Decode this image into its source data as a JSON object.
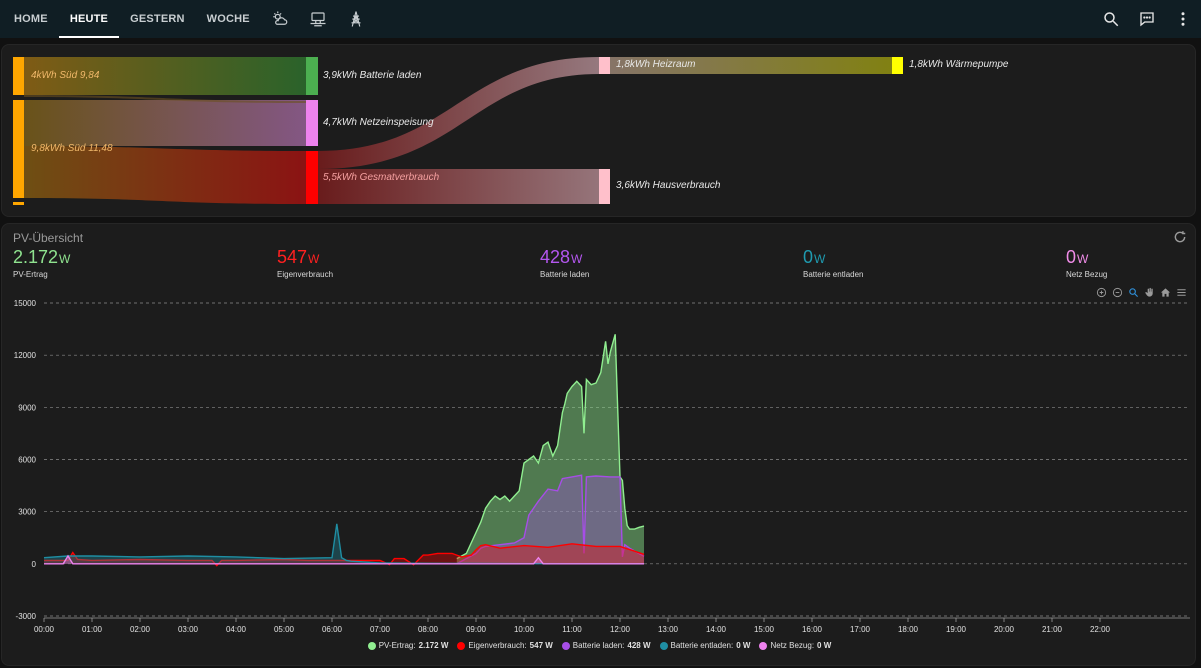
{
  "nav": {
    "tabs": [
      {
        "label": "HOME",
        "active": false
      },
      {
        "label": "HEUTE",
        "active": true
      },
      {
        "label": "GESTERN",
        "active": false
      },
      {
        "label": "WOCHE",
        "active": false
      }
    ],
    "icon_tabs": [
      "weather-sun-cloud-icon",
      "server-icon",
      "transmission-tower-icon"
    ],
    "actions": [
      "search-icon",
      "chat-icon",
      "more-vertical-icon"
    ]
  },
  "sankey": {
    "sources": [
      {
        "label": "4kWh Süd 9,84",
        "color": "#ffa600"
      },
      {
        "label": "9,8kWh Süd 11,48",
        "color": "#ffa600"
      }
    ],
    "mid": [
      {
        "label": "3,9kWh Batterie laden",
        "color": "#4caf50"
      },
      {
        "label": "4,7kWh Netzeinspeisung",
        "color": "#ee82ee"
      },
      {
        "label": "5,5kWh Gesmatverbrauch",
        "color": "#ff0000"
      }
    ],
    "third": [
      {
        "label": "1,8kWh Heizraum",
        "color": "#ffc0cb"
      },
      {
        "label": "3,6kWh Hausverbrauch",
        "color": "#ffc0cb"
      }
    ],
    "fourth": [
      {
        "label": "1,8kWh Wärmepumpe",
        "color": "#ffff00"
      }
    ]
  },
  "overview": {
    "title": "PV-Übersicht",
    "kpis": [
      {
        "value": "2.172",
        "unit": "W",
        "label": "PV-Ertrag",
        "color": "#8fe38f"
      },
      {
        "value": "547",
        "unit": "W",
        "label": "Eigenverbrauch",
        "color": "#ff2020"
      },
      {
        "value": "428",
        "unit": "W",
        "label": "Batterie laden",
        "color": "#b457f0"
      },
      {
        "value": "0",
        "unit": "W",
        "label": "Batterie entladen",
        "color": "#1f9bb0"
      },
      {
        "value": "0",
        "unit": "W",
        "label": "Netz Bezug",
        "color": "#f08ce8"
      }
    ],
    "toolbar": [
      "zoom-in-icon",
      "zoom-out-icon",
      "magnifier-icon",
      "pan-hand-icon",
      "home-icon",
      "menu-icon"
    ],
    "legend": [
      {
        "name": "PV-Ertrag:",
        "value": "2.172 W",
        "color": "#90ee90"
      },
      {
        "name": "Eigenverbrauch:",
        "value": "547 W",
        "color": "#ff0000"
      },
      {
        "name": "Batterie laden:",
        "value": "428 W",
        "color": "#a64ee6"
      },
      {
        "name": "Batterie entladen:",
        "value": "0 W",
        "color": "#1f8ea3"
      },
      {
        "name": "Netz Bezug:",
        "value": "0 W",
        "color": "#ee82ee"
      }
    ]
  },
  "chart_data": {
    "type": "area",
    "y_ticks": [
      "15000",
      "12000",
      "9000",
      "6000",
      "3000",
      "0",
      "-3000"
    ],
    "ylim": [
      -3000,
      15000
    ],
    "x_ticks": [
      "00:00",
      "01:00",
      "02:00",
      "03:00",
      "04:00",
      "05:00",
      "06:00",
      "07:00",
      "08:00",
      "09:00",
      "10:00",
      "11:00",
      "12:00",
      "13:00",
      "14:00",
      "15:00",
      "16:00",
      "17:00",
      "18:00",
      "19:00",
      "20:00",
      "21:00",
      "22:00"
    ],
    "xlim": [
      0,
      23.5
    ],
    "grid": true,
    "legend_position": "bottom",
    "series": [
      {
        "color": "#90ee90",
        "x": [
          8.6,
          8.8,
          9.0,
          9.1,
          9.2,
          9.3,
          9.4,
          9.5,
          9.6,
          9.7,
          9.8,
          9.9,
          10.0,
          10.1,
          10.2,
          10.3,
          10.4,
          10.5,
          10.6,
          10.7,
          10.8,
          10.85,
          10.9,
          11.0,
          11.1,
          11.2,
          11.25,
          11.3,
          11.4,
          11.5,
          11.6,
          11.7,
          11.75,
          11.8,
          11.9,
          12.0,
          12.05,
          12.1,
          12.15,
          12.2,
          12.3,
          12.4,
          12.5
        ],
        "y": [
          300,
          600,
          1800,
          2400,
          3200,
          3600,
          3900,
          3700,
          3900,
          3600,
          3900,
          4200,
          5800,
          6000,
          6200,
          5800,
          6800,
          7000,
          6200,
          6800,
          8700,
          9200,
          9800,
          10200,
          10500,
          10200,
          7500,
          10600,
          10300,
          10400,
          11000,
          12800,
          11500,
          12200,
          13200,
          5000,
          4800,
          3200,
          2200,
          2000,
          2000,
          2100,
          2172
        ]
      },
      {
        "color": "#ff0000",
        "x": [
          0.0,
          0.5,
          0.6,
          0.7,
          1.0,
          2.0,
          3.0,
          3.5,
          3.6,
          3.7,
          4.0,
          5.0,
          5.5,
          6.0,
          6.5,
          7.0,
          7.2,
          7.3,
          7.5,
          7.7,
          7.9,
          8.0,
          8.2,
          8.5,
          8.7,
          8.9,
          9.0,
          9.1,
          9.2,
          9.5,
          10.0,
          10.5,
          11.0,
          11.5,
          12.0,
          12.5
        ],
        "y": [
          200,
          200,
          650,
          250,
          200,
          250,
          200,
          200,
          -100,
          200,
          200,
          250,
          200,
          200,
          200,
          200,
          -50,
          300,
          300,
          -50,
          500,
          500,
          600,
          600,
          400,
          500,
          800,
          1050,
          1100,
          900,
          1050,
          950,
          1150,
          1000,
          1000,
          547
        ]
      },
      {
        "color": "#a64ee6",
        "x": [
          8.6,
          9.0,
          9.1,
          9.2,
          9.5,
          9.8,
          10.0,
          10.1,
          10.3,
          10.5,
          10.7,
          10.8,
          11.0,
          11.2,
          11.25,
          11.3,
          11.5,
          11.8,
          12.0,
          12.05,
          12.1,
          12.2,
          12.5
        ],
        "y": [
          0,
          600,
          900,
          1000,
          1100,
          1200,
          1500,
          2800,
          3600,
          4300,
          4200,
          4900,
          5000,
          5100,
          600,
          5000,
          5050,
          5000,
          5000,
          400,
          1100,
          900,
          428
        ]
      },
      {
        "color": "#1f8ea3",
        "x": [
          0.0,
          0.5,
          1.0,
          2.0,
          3.0,
          4.0,
          5.0,
          6.0,
          6.1,
          6.2,
          6.3,
          6.4,
          7.0,
          8.0,
          9.0,
          12.5
        ],
        "y": [
          350,
          450,
          450,
          400,
          450,
          400,
          300,
          350,
          2300,
          350,
          200,
          150,
          50,
          30,
          20,
          0
        ]
      },
      {
        "color": "#ee82ee",
        "x": [
          0.0,
          0.4,
          0.5,
          0.6,
          1.0,
          2.0,
          3.0,
          4.0,
          5.0,
          6.0,
          7.0,
          8.0,
          9.0,
          10.0,
          10.2,
          10.3,
          10.4,
          11.0,
          12.0,
          12.5
        ],
        "y": [
          0,
          0,
          450,
          0,
          0,
          0,
          0,
          0,
          0,
          0,
          0,
          0,
          0,
          0,
          0,
          350,
          0,
          0,
          0,
          0
        ]
      }
    ]
  }
}
